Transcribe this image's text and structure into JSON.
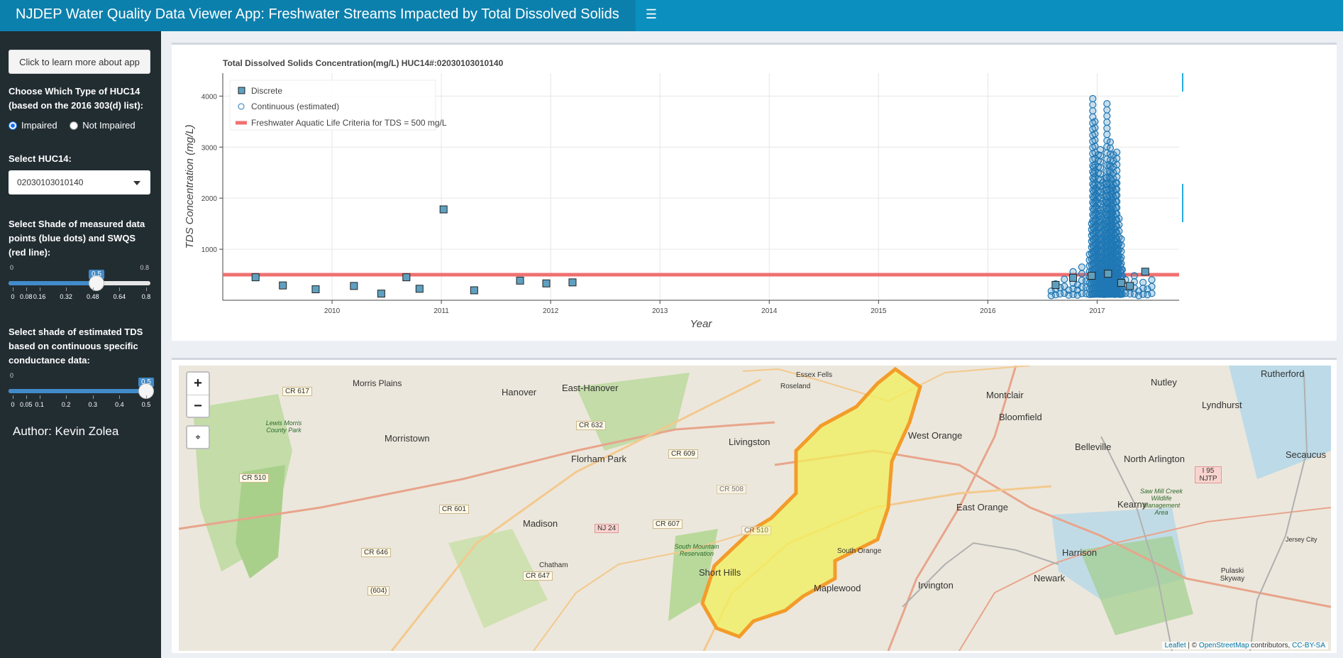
{
  "header": {
    "title": "NJDEP Water Quality Data Viewer App: Freshwater Streams Impacted by Total Dissolved Solids",
    "toggle_icon": "hamburger-icon"
  },
  "sidebar": {
    "learn_button": "Click to learn more about app",
    "huc_type_label": "Choose Which Type of HUC14 (based on the 2016 303(d) list):",
    "radio_impaired": "Impaired",
    "radio_not_impaired": "Not Impaired",
    "selected_huc_type": "Impaired",
    "select_huc_label": "Select HUC14:",
    "select_huc_value": "02030103010140",
    "shade_measured_label": "Select Shade of measured data points (blue dots) and SWQS (red line):",
    "slider1": {
      "min": "0",
      "max": "0.8",
      "value": "0.5",
      "value_num": 0.5,
      "min_num": 0,
      "max_num": 0.8,
      "tick_labels": [
        "0",
        "0.08",
        "0.16",
        "0.32",
        "0.48",
        "0.64",
        "0.8"
      ]
    },
    "shade_estimated_label": "Select shade of estimated TDS based on continuous specific conductance data:",
    "slider2": {
      "min": "0",
      "value": "0.5",
      "value_num": 0.5,
      "min_num": 0,
      "max_num": 0.5,
      "tick_labels": [
        "0",
        "0.05",
        "0.1",
        "0.2",
        "0.3",
        "0.4",
        "0.5"
      ]
    },
    "author": "Author: Kevin Zolea"
  },
  "chart_data": {
    "type": "scatter",
    "title": "Total Dissolved Solids Concentration(mg/L) HUC14#:02030103010140",
    "xlabel": "Year",
    "ylabel": "TDS Concentration (mg/L)",
    "xlim": [
      2009.0,
      2017.75
    ],
    "ylim": [
      0,
      4450
    ],
    "x_ticks": [
      "2010",
      "2011",
      "2012",
      "2013",
      "2014",
      "2015",
      "2016",
      "2017"
    ],
    "y_ticks": [
      "1000",
      "2000",
      "3000",
      "4000"
    ],
    "legend": [
      "Discrete",
      "Continuous (estimated)",
      "Freshwater Aquatic Life Criteria for TDS = 500 mg/L"
    ],
    "legend_position": "top-left",
    "criteria_line": 500,
    "colors": {
      "discrete": "#5fa0c0",
      "continuous": "#1f77b4",
      "criteria": "#f07070"
    },
    "series": [
      {
        "name": "Discrete",
        "x": [
          2009.3,
          2009.55,
          2009.85,
          2010.2,
          2010.45,
          2010.68,
          2010.8,
          2011.02,
          2011.3,
          2011.72,
          2011.96,
          2012.2,
          2016.62,
          2016.78,
          2016.95,
          2017.1,
          2017.22,
          2017.3,
          2017.44
        ],
        "y": [
          450,
          290,
          215,
          280,
          130,
          450,
          225,
          1780,
          195,
          385,
          330,
          350,
          300,
          440,
          480,
          520,
          340,
          280,
          560
        ]
      },
      {
        "name": "Continuous (estimated)",
        "x": [
          2016.58,
          2016.62,
          2016.66,
          2016.7,
          2016.74,
          2016.78,
          2016.82,
          2016.86,
          2016.9,
          2016.93,
          2016.95,
          2016.96,
          2016.97,
          2016.98,
          2016.99,
          2017.0,
          2017.01,
          2017.02,
          2017.03,
          2017.04,
          2017.05,
          2017.06,
          2017.07,
          2017.08,
          2017.09,
          2017.1,
          2017.11,
          2017.12,
          2017.13,
          2017.14,
          2017.15,
          2017.16,
          2017.17,
          2017.18,
          2017.19,
          2017.2,
          2017.21,
          2017.22,
          2017.23,
          2017.26,
          2017.3,
          2017.34,
          2017.38,
          2017.42,
          2017.46,
          2017.5
        ],
        "y": [
          180,
          320,
          250,
          410,
          200,
          560,
          300,
          650,
          380,
          900,
          1500,
          3950,
          2600,
          3500,
          2200,
          1000,
          2850,
          1700,
          2950,
          1200,
          2300,
          800,
          1500,
          2400,
          3850,
          1900,
          2650,
          3100,
          1700,
          2200,
          2850,
          1400,
          2300,
          2900,
          1100,
          1600,
          800,
          1200,
          600,
          400,
          250,
          480,
          180,
          350,
          220,
          400
        ]
      }
    ]
  },
  "map": {
    "zoom_in": "+",
    "zoom_out": "−",
    "fullscreen_icon": "fullscreen-icon",
    "attribution": {
      "leaflet": "Leaflet",
      "sep": " | © ",
      "osm": "OpenStreetMap",
      "contributors": " contributors, ",
      "license": "CC-BY-SA"
    },
    "places": [
      "Morris Plains",
      "Hanover",
      "East-Hanover",
      "Essex Fells",
      "Roseland",
      "Montclair",
      "Nutley",
      "Rutherford",
      "Lyndhurst",
      "Bloomfield",
      "Morristown",
      "Livingston",
      "West Orange",
      "Belleville",
      "North Arlington",
      "Secaucus",
      "Florham Park",
      "East Orange",
      "Kearny",
      "Madison",
      "Harrison",
      "South Orange",
      "Maplewood",
      "Irvington",
      "Newark",
      "Chatham",
      "Short Hills",
      "Lewis Morris County Park",
      "South Mountain Reservation",
      "Saw Mill Creek Wildlife Management Area",
      "Pulaski Skyway",
      "Jersey City"
    ],
    "roads": [
      "CR 617",
      "CR 510",
      "CR 632",
      "CR 609",
      "CR 601",
      "NJ 24",
      "CR 607",
      "CR 646",
      "CR 647",
      "(604)",
      "CR 508",
      "CR 510",
      "I 95 NJTP"
    ]
  },
  "toolbar_icons": [
    "pan-icon",
    "box-zoom-icon",
    "wheel-zoom-icon",
    "reset-icon",
    "save-icon",
    "hover-icon",
    "hover2-icon",
    "help-icon"
  ]
}
